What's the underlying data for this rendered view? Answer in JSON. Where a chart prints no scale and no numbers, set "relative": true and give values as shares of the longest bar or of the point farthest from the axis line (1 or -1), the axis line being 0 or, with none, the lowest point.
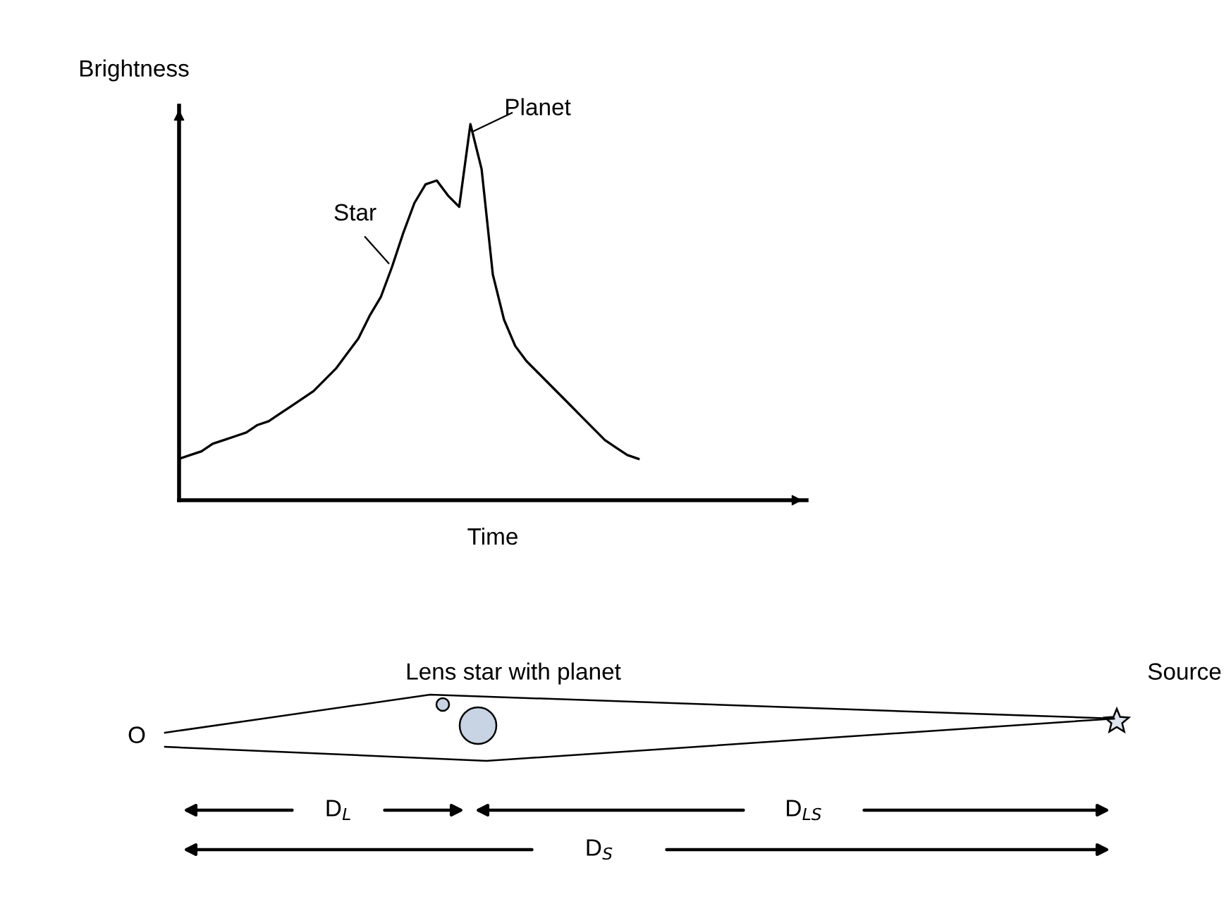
{
  "chart_data": [
    {
      "type": "line",
      "relative": true,
      "xlabel": "Time",
      "ylabel": "Brightness",
      "color": "#000000",
      "categories": [
        null,
        null,
        null,
        null,
        null,
        null,
        null,
        null,
        null,
        null,
        null,
        null,
        null,
        null,
        null,
        null,
        null,
        null,
        null,
        null,
        null,
        null,
        null,
        null,
        null,
        null,
        null,
        null,
        null,
        null,
        null,
        null,
        null,
        null,
        null,
        null,
        null,
        null,
        null,
        null,
        null,
        null,
        null,
        null,
        null,
        null,
        null,
        null,
        null,
        null,
        null,
        null,
        null,
        null,
        null,
        null,
        null
      ],
      "values": [
        0.11,
        0.12,
        0.13,
        0.15,
        0.16,
        0.17,
        0.18,
        0.2,
        0.21,
        0.23,
        0.25,
        0.27,
        0.29,
        0.32,
        0.35,
        0.39,
        0.43,
        0.49,
        0.54,
        0.62,
        0.71,
        0.79,
        0.84,
        0.85,
        0.81,
        0.78,
        1.0,
        0.88,
        0.6,
        0.48,
        0.41,
        0.37,
        0.34,
        0.31,
        0.28,
        0.25,
        0.22,
        0.19,
        0.16,
        0.14,
        0.12,
        0.11,
        null,
        null,
        null,
        null,
        null,
        null,
        null,
        null,
        null,
        null,
        null,
        null,
        null,
        null,
        null
      ],
      "annotations": [
        "Star",
        "Planet"
      ]
    },
    {
      "type": "other",
      "annotations": [
        "Lens star with planet",
        "Source",
        "O",
        "D$_{L}$",
        "D$_{LS}$",
        "D$_{S}$"
      ]
    }
  ]
}
